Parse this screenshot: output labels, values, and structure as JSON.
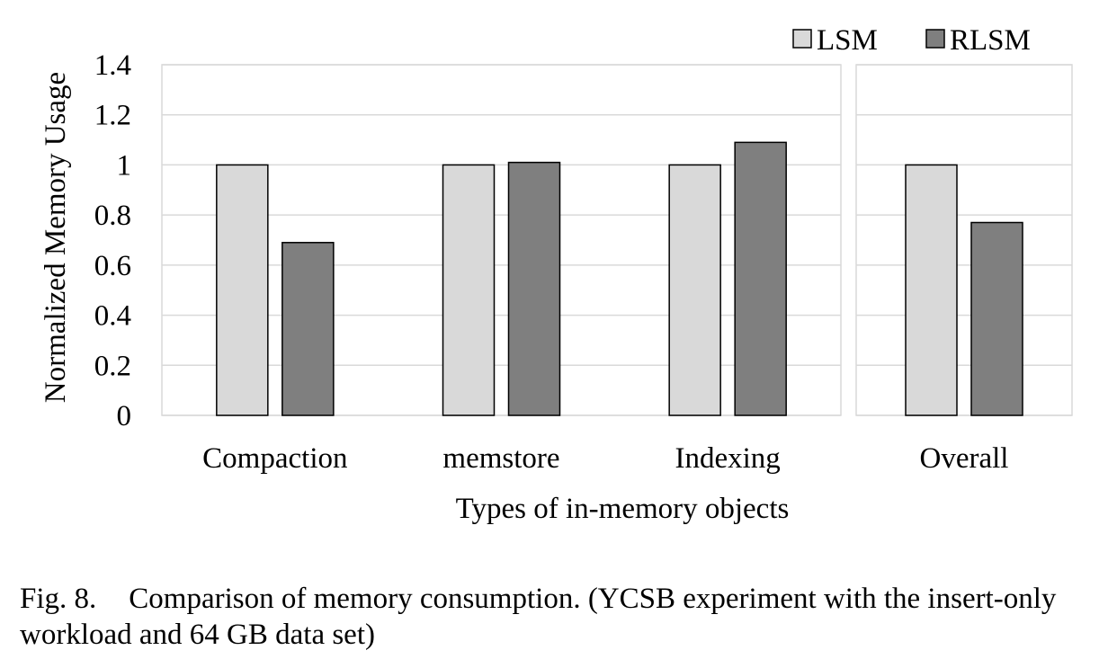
{
  "chart_data": {
    "type": "bar",
    "ylabel": "Normalized Memory Usage",
    "xlabel": "Types of in-memory objects",
    "ylim": [
      0,
      1.4
    ],
    "yticks": [
      "0",
      "0.2",
      "0.4",
      "0.6",
      "0.8",
      "1",
      "1.2",
      "1.4"
    ],
    "grid": true,
    "legend_position": "top-right",
    "series": [
      {
        "name": "LSM",
        "color": "#d9d9d9"
      },
      {
        "name": "RLSM",
        "color": "#7f7f7f"
      }
    ],
    "panels": [
      {
        "categories": [
          "Compaction",
          "memstore",
          "Indexing"
        ],
        "values": {
          "LSM": [
            1.0,
            1.0,
            1.0
          ],
          "RLSM": [
            0.69,
            1.01,
            1.09
          ]
        }
      },
      {
        "categories": [
          "Overall"
        ],
        "values": {
          "LSM": [
            1.0
          ],
          "RLSM": [
            0.77
          ]
        }
      }
    ]
  },
  "caption": {
    "label": "Fig. 8.",
    "text": "Comparison of memory consumption. (YCSB experiment with the insert-only workload and 64 GB data set)"
  }
}
